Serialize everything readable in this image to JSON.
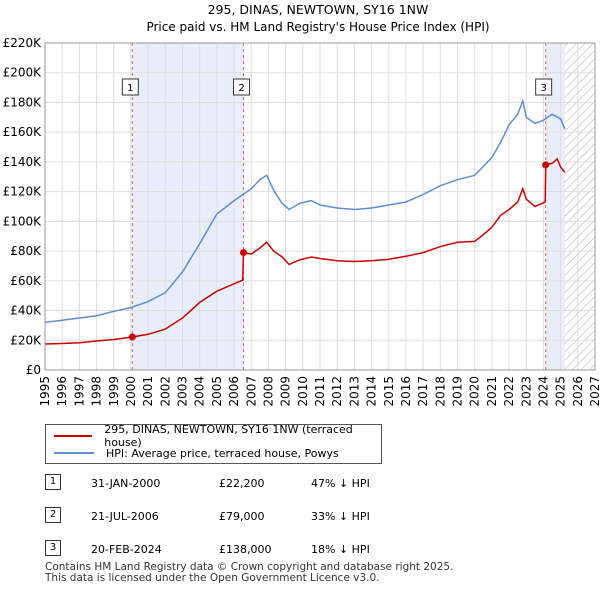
{
  "chart_data": {
    "type": "line",
    "title": "295, DINAS, NEWTOWN, SY16 1NW",
    "subtitle": "Price paid vs. HM Land Registry's House Price Index (HPI)",
    "xlim": [
      1995,
      2027
    ],
    "ylim": [
      0,
      220000
    ],
    "x_ticks": [
      "1995",
      "1996",
      "1997",
      "1998",
      "1999",
      "2000",
      "2001",
      "2002",
      "2003",
      "2004",
      "2005",
      "2006",
      "2007",
      "2008",
      "2009",
      "2010",
      "2011",
      "2012",
      "2013",
      "2014",
      "2015",
      "2016",
      "2017",
      "2018",
      "2019",
      "2020",
      "2021",
      "2022",
      "2023",
      "2024",
      "2025",
      "2026",
      "2027"
    ],
    "y_ticks": [
      {
        "value": 0,
        "label": "£0"
      },
      {
        "value": 20000,
        "label": "£20K"
      },
      {
        "value": 40000,
        "label": "£40K"
      },
      {
        "value": 60000,
        "label": "£60K"
      },
      {
        "value": 80000,
        "label": "£80K"
      },
      {
        "value": 100000,
        "label": "£100K"
      },
      {
        "value": 120000,
        "label": "£120K"
      },
      {
        "value": 140000,
        "label": "£140K"
      },
      {
        "value": 160000,
        "label": "£160K"
      },
      {
        "value": 180000,
        "label": "£180K"
      },
      {
        "value": 200000,
        "label": "£200K"
      },
      {
        "value": 220000,
        "label": "£220K"
      }
    ],
    "grid": true,
    "shaded_periods": [
      [
        2000.08,
        2006.55
      ],
      [
        2024.13,
        2025.25
      ]
    ],
    "future_hatch_start": 2025.25,
    "series": [
      {
        "name": "295, DINAS, NEWTOWN, SY16 1NW (terraced house)",
        "color": "#cc0000",
        "points": [
          [
            1995.0,
            17500
          ],
          [
            1996.0,
            17800
          ],
          [
            1997.0,
            18300
          ],
          [
            1998.0,
            19500
          ],
          [
            1999.0,
            20500
          ],
          [
            2000.08,
            22200
          ],
          [
            2001.0,
            24000
          ],
          [
            2002.0,
            27500
          ],
          [
            2003.0,
            35000
          ],
          [
            2004.0,
            45500
          ],
          [
            2005.0,
            53000
          ],
          [
            2006.0,
            58000
          ],
          [
            2006.5,
            60500
          ],
          [
            2006.55,
            79000
          ],
          [
            2007.0,
            78000
          ],
          [
            2007.5,
            82000
          ],
          [
            2007.9,
            86000
          ],
          [
            2008.3,
            80000
          ],
          [
            2008.8,
            76000
          ],
          [
            2009.2,
            71000
          ],
          [
            2009.8,
            74000
          ],
          [
            2010.5,
            76000
          ],
          [
            2011.0,
            75000
          ],
          [
            2012.0,
            73500
          ],
          [
            2013.0,
            73000
          ],
          [
            2014.0,
            73500
          ],
          [
            2015.0,
            74500
          ],
          [
            2016.0,
            76500
          ],
          [
            2017.0,
            79000
          ],
          [
            2018.0,
            83000
          ],
          [
            2019.0,
            86000
          ],
          [
            2020.0,
            86500
          ],
          [
            2020.5,
            91000
          ],
          [
            2021.0,
            96000
          ],
          [
            2021.5,
            104000
          ],
          [
            2022.0,
            108000
          ],
          [
            2022.5,
            113000
          ],
          [
            2022.8,
            122000
          ],
          [
            2023.0,
            115000
          ],
          [
            2023.5,
            110000
          ],
          [
            2024.0,
            112500
          ],
          [
            2024.1,
            113000
          ],
          [
            2024.13,
            138000
          ],
          [
            2024.5,
            139000
          ],
          [
            2024.8,
            142000
          ],
          [
            2025.0,
            136500
          ],
          [
            2025.25,
            133000
          ]
        ]
      },
      {
        "name": "HPI: Average price, terraced house, Powys",
        "color": "#5b8fd6",
        "points": [
          [
            1995.0,
            32000
          ],
          [
            1996.0,
            33500
          ],
          [
            1997.0,
            35000
          ],
          [
            1998.0,
            36500
          ],
          [
            1999.0,
            39500
          ],
          [
            2000.0,
            42000
          ],
          [
            2001.0,
            46000
          ],
          [
            2002.0,
            52000
          ],
          [
            2003.0,
            66000
          ],
          [
            2004.0,
            85000
          ],
          [
            2005.0,
            105000
          ],
          [
            2006.0,
            114000
          ],
          [
            2007.0,
            122000
          ],
          [
            2007.5,
            128000
          ],
          [
            2007.9,
            131000
          ],
          [
            2008.3,
            121000
          ],
          [
            2008.8,
            112000
          ],
          [
            2009.2,
            108000
          ],
          [
            2009.8,
            112000
          ],
          [
            2010.5,
            114000
          ],
          [
            2011.0,
            111000
          ],
          [
            2012.0,
            109000
          ],
          [
            2013.0,
            108000
          ],
          [
            2014.0,
            109000
          ],
          [
            2015.0,
            111000
          ],
          [
            2016.0,
            113000
          ],
          [
            2017.0,
            118000
          ],
          [
            2018.0,
            124000
          ],
          [
            2019.0,
            128000
          ],
          [
            2020.0,
            131000
          ],
          [
            2020.5,
            137000
          ],
          [
            2021.0,
            143000
          ],
          [
            2021.5,
            153000
          ],
          [
            2022.0,
            165000
          ],
          [
            2022.5,
            172000
          ],
          [
            2022.8,
            181000
          ],
          [
            2023.0,
            170000
          ],
          [
            2023.5,
            166000
          ],
          [
            2024.0,
            168000
          ],
          [
            2024.5,
            172000
          ],
          [
            2025.0,
            169000
          ],
          [
            2025.25,
            162000
          ]
        ]
      }
    ],
    "sales": [
      {
        "num": "1",
        "x": 2000.08,
        "price": 22200
      },
      {
        "num": "2",
        "x": 2006.55,
        "price": 79000
      },
      {
        "num": "3",
        "x": 2024.13,
        "price": 138000
      }
    ]
  },
  "legend": {
    "property_label": "295, DINAS, NEWTOWN, SY16 1NW (terraced house)",
    "hpi_label": "HPI: Average price, terraced house, Powys",
    "property_color": "#cc0000",
    "hpi_color": "#5b8fd6"
  },
  "transactions": [
    {
      "num": "1",
      "date": "31-JAN-2000",
      "price": "£22,200",
      "hpi": "47% ↓ HPI"
    },
    {
      "num": "2",
      "date": "21-JUL-2006",
      "price": "£79,000",
      "hpi": "33% ↓ HPI"
    },
    {
      "num": "3",
      "date": "20-FEB-2024",
      "price": "£138,000",
      "hpi": "18% ↓ HPI"
    }
  ],
  "footer": {
    "line1": "Contains HM Land Registry data © Crown copyright and database right 2025.",
    "line2": "This data is licensed under the Open Government Licence v3.0."
  }
}
